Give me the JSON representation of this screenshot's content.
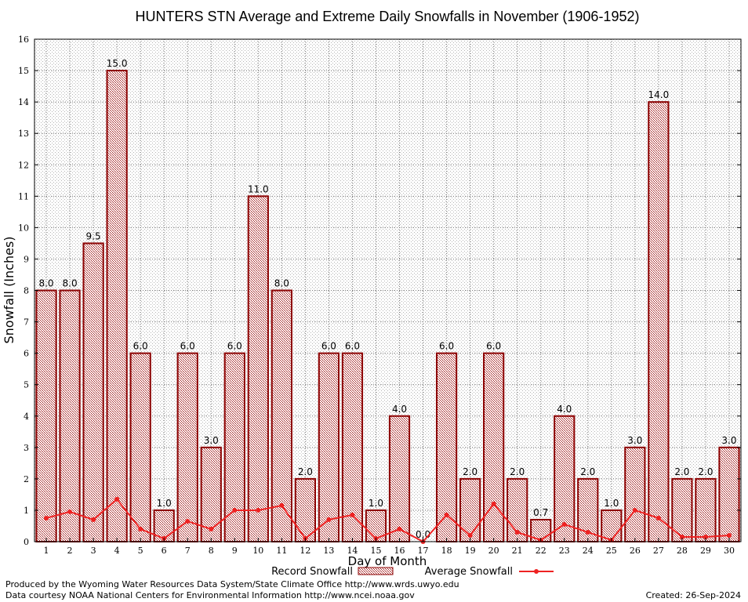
{
  "chart_data": {
    "type": "bar",
    "title": "HUNTERS STN Average and Extreme Daily Snowfalls in November (1906-1952)",
    "xlabel": "Day of Month",
    "ylabel": "Snowfall (Inches)",
    "ylim": [
      0,
      16
    ],
    "yticks": [
      0,
      1,
      2,
      3,
      4,
      5,
      6,
      7,
      8,
      9,
      10,
      11,
      12,
      13,
      14,
      15,
      16
    ],
    "grid": true,
    "legend_position": "bottom-center",
    "categories": [
      "1",
      "2",
      "3",
      "4",
      "5",
      "6",
      "7",
      "8",
      "9",
      "10",
      "11",
      "12",
      "13",
      "14",
      "15",
      "16",
      "17",
      "18",
      "19",
      "20",
      "21",
      "22",
      "23",
      "24",
      "25",
      "26",
      "27",
      "28",
      "29",
      "30"
    ],
    "series": [
      {
        "name": "Record Snowfall",
        "kind": "bar",
        "color": "#8b0000",
        "values": [
          8.0,
          8.0,
          9.5,
          15.0,
          6.0,
          1.0,
          6.0,
          3.0,
          6.0,
          11.0,
          8.0,
          2.0,
          6.0,
          6.0,
          1.0,
          4.0,
          0.0,
          6.0,
          2.0,
          6.0,
          2.0,
          0.7,
          4.0,
          2.0,
          1.0,
          3.0,
          14.0,
          2.0,
          2.0,
          3.0
        ],
        "labels": [
          "8.0",
          "8.0",
          "9.5",
          "15.0",
          "6.0",
          "1.0",
          "6.0",
          "3.0",
          "6.0",
          "11.0",
          "8.0",
          "2.0",
          "6.0",
          "6.0",
          "1.0",
          "4.0",
          "0.0",
          "6.0",
          "2.0",
          "6.0",
          "2.0",
          "0.7",
          "4.0",
          "2.0",
          "1.0",
          "3.0",
          "14.0",
          "2.0",
          "2.0",
          "3.0"
        ]
      },
      {
        "name": "Average Snowfall",
        "kind": "line",
        "color": "#ee2222",
        "values": [
          0.75,
          0.95,
          0.7,
          1.35,
          0.4,
          0.1,
          0.65,
          0.4,
          1.0,
          1.0,
          1.15,
          0.1,
          0.7,
          0.85,
          0.1,
          0.4,
          0.0,
          0.85,
          0.2,
          1.2,
          0.3,
          0.05,
          0.55,
          0.3,
          0.05,
          1.0,
          0.75,
          0.15,
          0.15,
          0.2
        ]
      }
    ]
  },
  "footer": {
    "producer": "Produced by the Wyoming Water Resources Data System/State Climate Office http://www.wrds.uwyo.edu",
    "source": "Data courtesy NOAA National Centers for Environmental Information http://www.ncei.noaa.gov",
    "created": "Created: 26-Sep-2024"
  }
}
